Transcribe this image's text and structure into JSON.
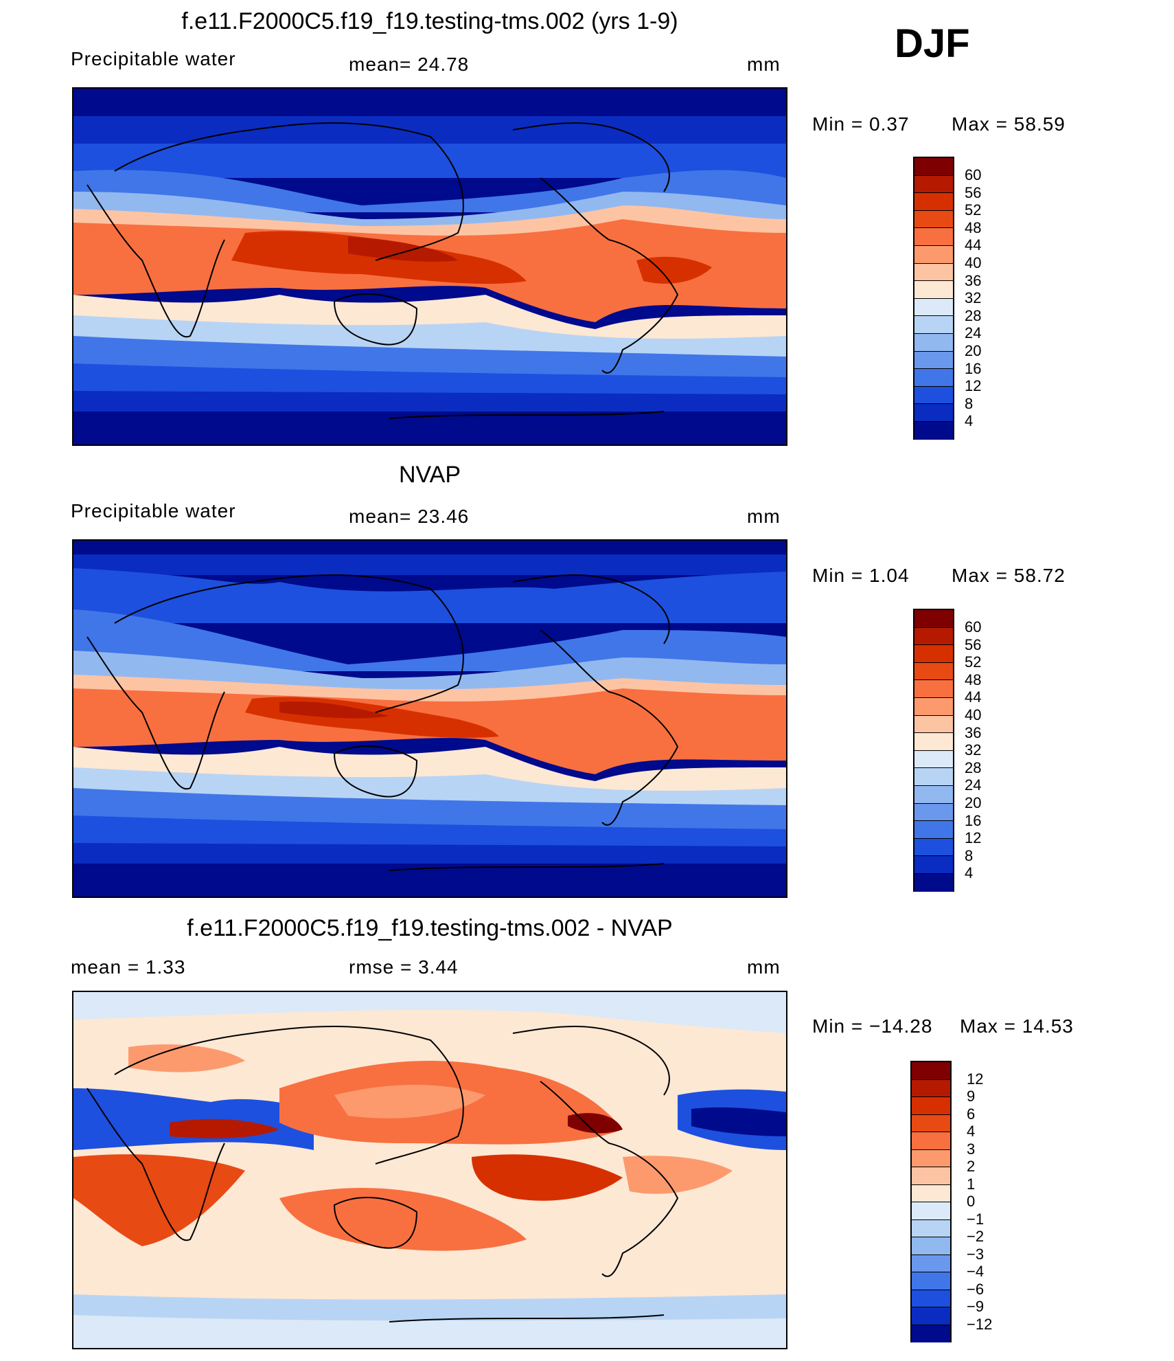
{
  "season": "DJF",
  "panels": [
    {
      "title": "f.e11.F2000C5.f19_f19.testing-tms.002 (yrs 1-9)",
      "left_label": "Precipitable  water",
      "center_label": "mean=   24.78",
      "units": "mm",
      "min_text": "Min  =      0.37",
      "max_text": "Max  =    58.59",
      "colorbar_ticks": [
        "60",
        "56",
        "52",
        "48",
        "44",
        "40",
        "36",
        "32",
        "28",
        "24",
        "20",
        "16",
        "12",
        "8",
        "4"
      ]
    },
    {
      "title": "NVAP",
      "left_label": "Precipitable  water",
      "center_label": "mean=   23.46",
      "units": "mm",
      "min_text": "Min  =      1.04",
      "max_text": "Max  =    58.72",
      "colorbar_ticks": [
        "60",
        "56",
        "52",
        "48",
        "44",
        "40",
        "36",
        "32",
        "28",
        "24",
        "20",
        "16",
        "12",
        "8",
        "4"
      ]
    },
    {
      "title": "f.e11.F2000C5.f19_f19.testing-tms.002 - NVAP",
      "left_label": "mean  =      1.33",
      "center_label": "rmse  =      3.44",
      "units": "mm",
      "min_text": "Min  = −14.28",
      "max_text": "Max  =    14.53",
      "colorbar_ticks": [
        "12",
        "9",
        "6",
        "4",
        "3",
        "2",
        "1",
        "0",
        "−1",
        "−2",
        "−3",
        "−4",
        "−6",
        "−9",
        "−12"
      ]
    }
  ],
  "colors": {
    "abs_scale": [
      "#7f0000",
      "#b51a00",
      "#d73000",
      "#e84a14",
      "#f87040",
      "#fc9a6e",
      "#fdc4a4",
      "#fde8d4",
      "#dbe9f8",
      "#b8d4f4",
      "#92b8f0",
      "#6a98ec",
      "#4076e8",
      "#1d50de",
      "#0a2cc0",
      "#000a8c"
    ],
    "diff_scale": [
      "#7f0000",
      "#b51a00",
      "#d73000",
      "#e84a14",
      "#f87040",
      "#fc9a6e",
      "#fdc4a4",
      "#fde8d4",
      "#dbe9f8",
      "#b8d4f4",
      "#92b8f0",
      "#6a98ec",
      "#4076e8",
      "#1d50de",
      "#0a2cc0",
      "#000a8c"
    ]
  }
}
